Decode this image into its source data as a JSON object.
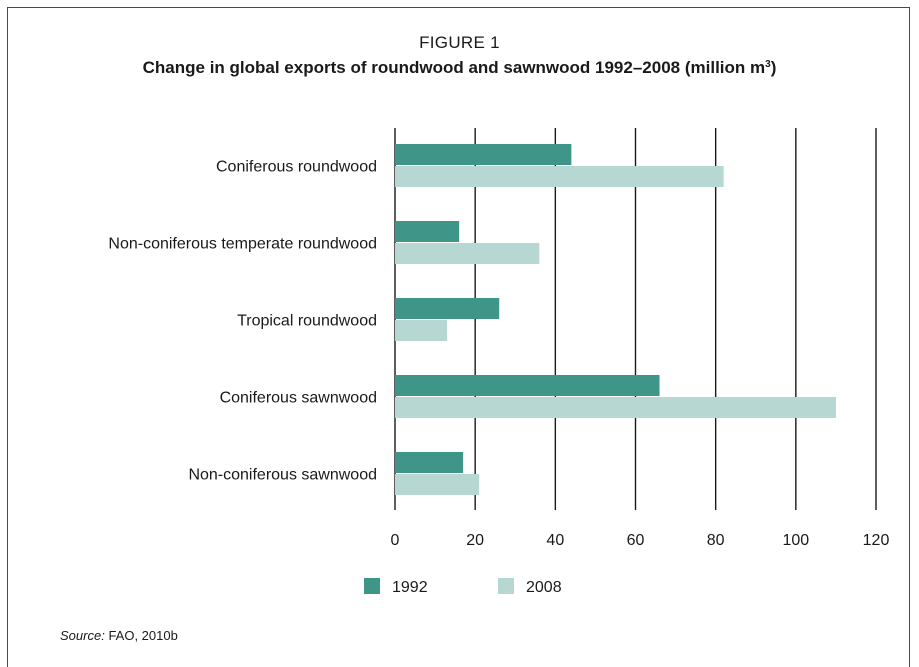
{
  "figure": {
    "label": "FIGURE 1",
    "title_main": "Change in global exports of roundwood and sawnwood 1992–2008 (million m",
    "title_sup": "3",
    "title_end": ")"
  },
  "chart_data": {
    "type": "bar",
    "orientation": "horizontal",
    "categories": [
      "Coniferous roundwood",
      "Non-coniferous temperate roundwood",
      "Tropical roundwood",
      "Coniferous sawnwood",
      "Non-coniferous sawnwood"
    ],
    "series": [
      {
        "name": "1992",
        "color": "#3f9688",
        "values": [
          44,
          16,
          26,
          66,
          17
        ]
      },
      {
        "name": "2008",
        "color": "#b7d8d2",
        "values": [
          82,
          36,
          13,
          110,
          21
        ]
      }
    ],
    "xlim": [
      0,
      120
    ],
    "xticks": [
      "0",
      "20",
      "40",
      "60",
      "80",
      "100",
      "120"
    ],
    "grid": "vertical",
    "legend": "bottom"
  },
  "source": {
    "label": "Source:",
    "text": "FAO, 2010b"
  }
}
